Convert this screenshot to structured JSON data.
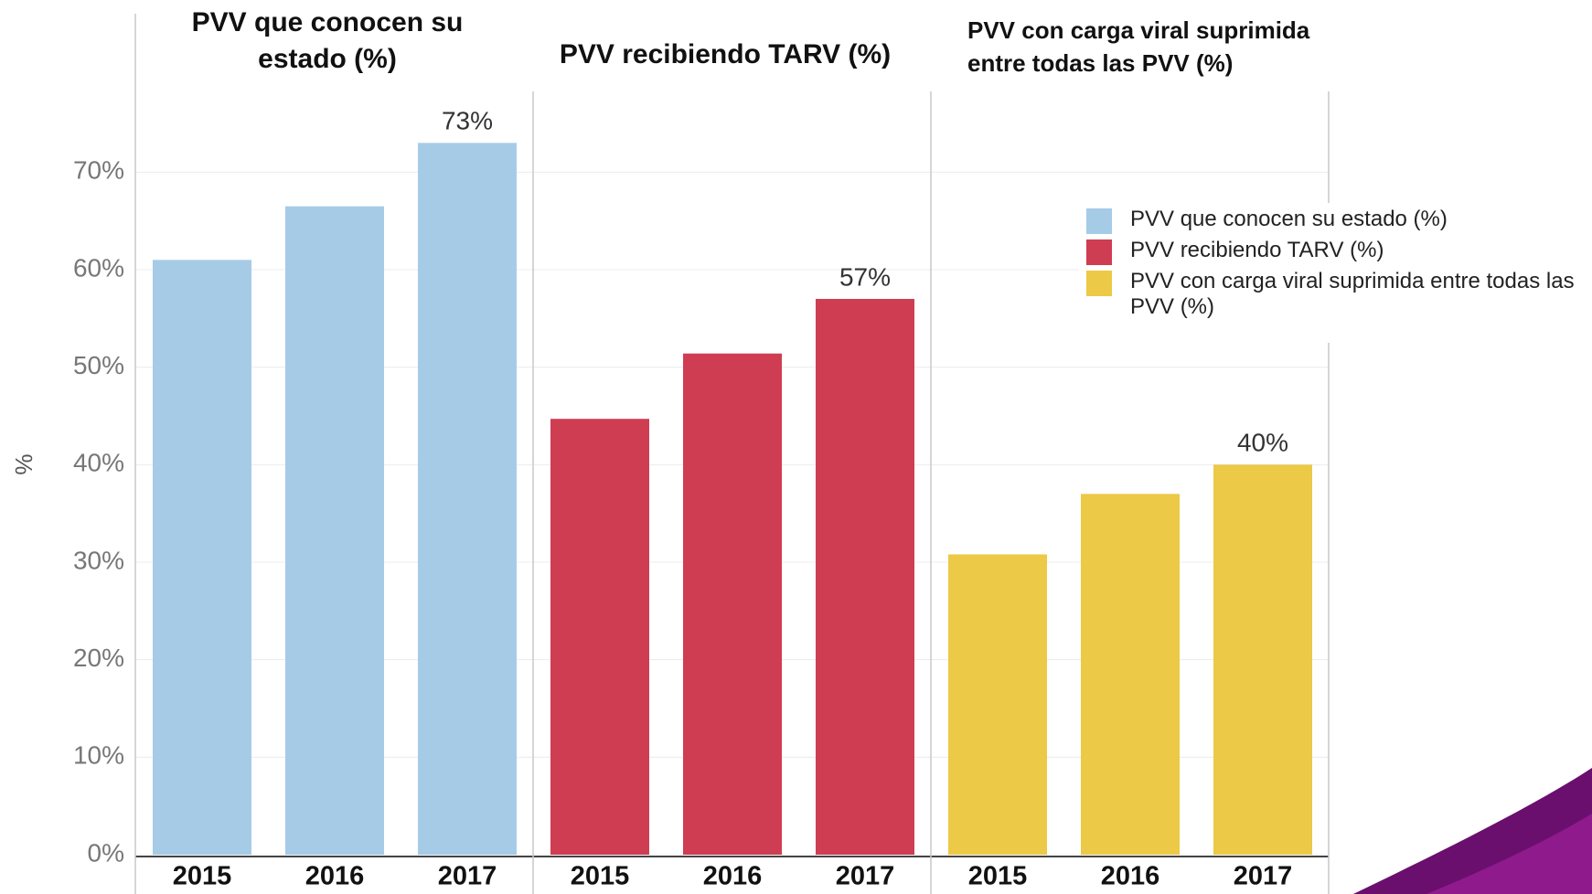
{
  "chart_data": {
    "type": "bar",
    "ylabel": "%",
    "categories": [
      "2015",
      "2016",
      "2017"
    ],
    "ylim": [
      0,
      78
    ],
    "yticks": [
      {
        "value": 0,
        "label": "0%"
      },
      {
        "value": 10,
        "label": "10%"
      },
      {
        "value": 20,
        "label": "20%"
      },
      {
        "value": 30,
        "label": "30%"
      },
      {
        "value": 40,
        "label": "40%"
      },
      {
        "value": 50,
        "label": "50%"
      },
      {
        "value": 60,
        "label": "60%"
      },
      {
        "value": 70,
        "label": "70%"
      }
    ],
    "grid": true,
    "legend": "right",
    "series": [
      {
        "name": "PVV que conocen su estado (%)",
        "color": "#a6cbe7",
        "values": [
          61,
          66.5,
          73
        ],
        "value_labels": [
          null,
          null,
          "73%"
        ]
      },
      {
        "name": "PVV recibiendo TARV (%)",
        "color": "#cf3d52",
        "values": [
          44.7,
          51.4,
          57
        ],
        "value_labels": [
          null,
          null,
          "57%"
        ]
      },
      {
        "name": "PVV con carga viral suprimida entre todas las PVV (%)",
        "color": "#ecc946",
        "values": [
          30.8,
          37,
          40
        ],
        "value_labels": [
          null,
          null,
          "40%"
        ]
      }
    ]
  }
}
